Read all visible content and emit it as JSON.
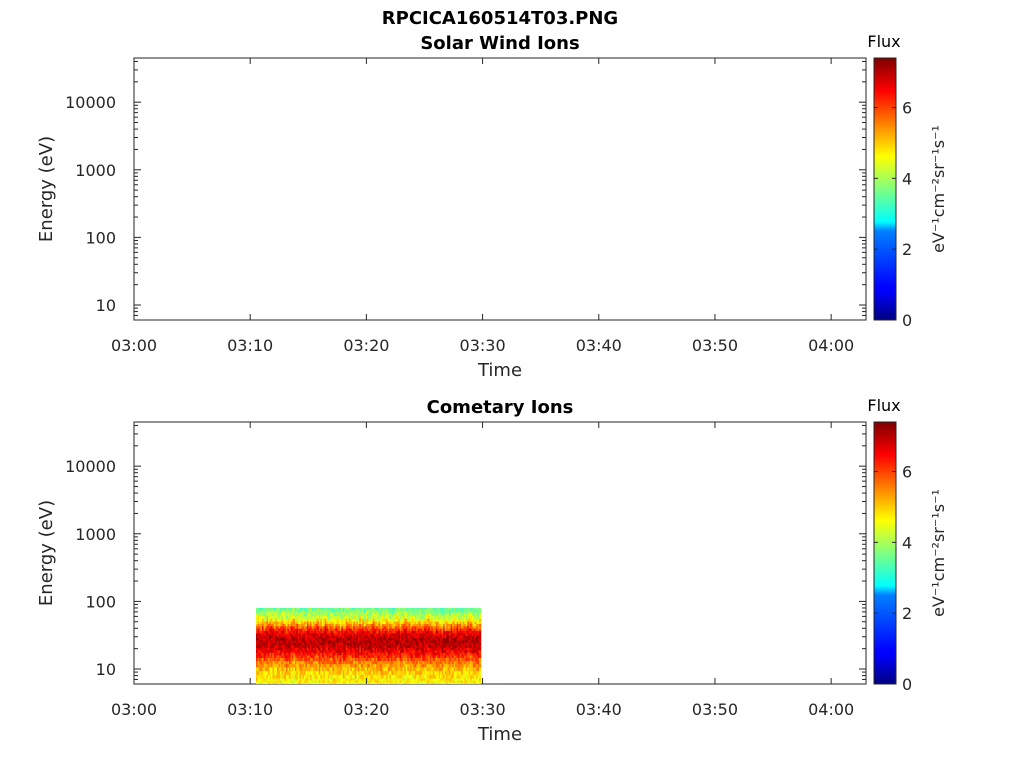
{
  "figure_title": "RPCICA160514T03.PNG",
  "colorbar": {
    "label": "Flux",
    "units": "eV⁻¹cm⁻²sr⁻¹s⁻¹",
    "range": [
      0,
      7.4
    ],
    "ticks": [
      0,
      2,
      4,
      6
    ],
    "tick_labels": [
      "0",
      "2",
      "4",
      "6"
    ],
    "colormap": "jet"
  },
  "chart_data": [
    {
      "type": "heatmap",
      "title": "Solar Wind Ions",
      "xlabel": "Time",
      "ylabel": "Energy (eV)",
      "x_ticks": [
        "03:00",
        "03:10",
        "03:20",
        "03:30",
        "03:40",
        "03:50",
        "04:00"
      ],
      "xlim": [
        "03:00",
        "04:03"
      ],
      "y_scale": "log",
      "ylim": [
        6,
        45000
      ],
      "y_ticks": [
        10,
        100,
        1000,
        10000
      ],
      "y_tick_labels": [
        "10",
        "100",
        "1000",
        "10000"
      ],
      "grid": false,
      "data": []
    },
    {
      "type": "heatmap",
      "title": "Cometary Ions",
      "xlabel": "Time",
      "ylabel": "Energy (eV)",
      "x_ticks": [
        "03:00",
        "03:10",
        "03:20",
        "03:30",
        "03:40",
        "03:50",
        "04:00"
      ],
      "xlim": [
        "03:00",
        "04:03"
      ],
      "y_scale": "log",
      "ylim": [
        6,
        45000
      ],
      "y_ticks": [
        10,
        100,
        1000,
        10000
      ],
      "y_tick_labels": [
        "10",
        "100",
        "1000",
        "10000"
      ],
      "grid": false,
      "data": [
        {
          "time_start": "03:10:30",
          "time_end": "03:29:50",
          "energy_profile": [
            {
              "energy_ev": 6,
              "flux": 4.6
            },
            {
              "energy_ev": 9,
              "flux": 4.9
            },
            {
              "energy_ev": 13,
              "flux": 5.6
            },
            {
              "energy_ev": 17,
              "flux": 6.4
            },
            {
              "energy_ev": 22,
              "flux": 6.9
            },
            {
              "energy_ev": 28,
              "flux": 7.0
            },
            {
              "energy_ev": 36,
              "flux": 6.5
            },
            {
              "energy_ev": 45,
              "flux": 5.4
            },
            {
              "energy_ev": 58,
              "flux": 4.3
            },
            {
              "energy_ev": 80,
              "flux": 3.5
            }
          ]
        }
      ]
    }
  ]
}
